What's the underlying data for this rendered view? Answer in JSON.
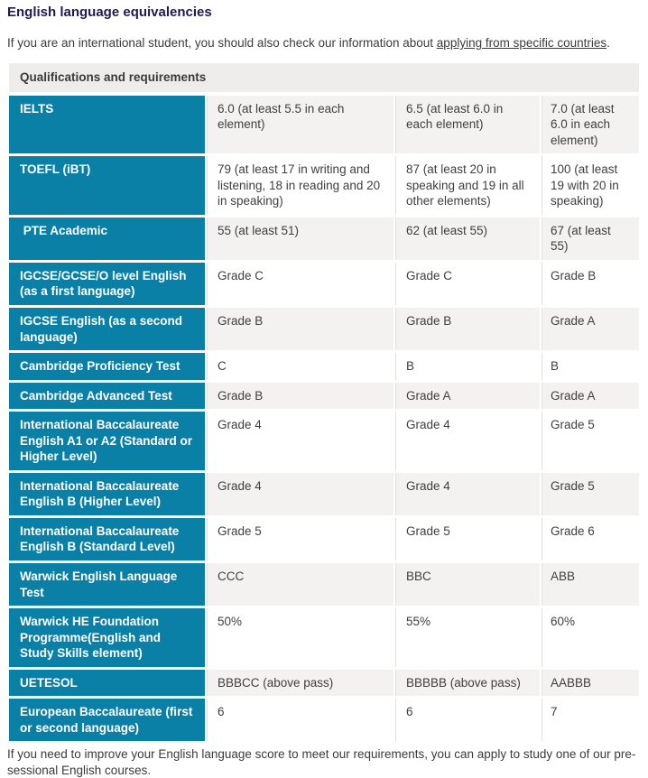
{
  "page": {
    "title": "English language equivalencies",
    "intro_before": "If you are an international student, you should also check our information about ",
    "intro_link": "applying from specific countries",
    "intro_after": ".",
    "bottom_note": "If you need to improve your English language score to meet our requirements, you can apply to study one of our pre-sessional English courses."
  },
  "table": {
    "header": "Qualifications and requirements",
    "rows": [
      {
        "label": "IELTS",
        "values": [
          "6.0 (at least 5.5 in each element)",
          "6.5 (at least 6.0 in each element)",
          "7.0 (at least 6.0 in each element)"
        ]
      },
      {
        "label": "TOEFL (iBT)",
        "values": [
          "79 (at least 17 in writing and listening, 18 in reading and 20 in speaking)",
          "87 (at least 20 in speaking and 19 in all other elements)",
          "100 (at least 19 with 20 in speaking)"
        ]
      },
      {
        "label": " PTE Academic",
        "values": [
          "55 (at least 51)",
          "62 (at least 55)",
          "67 (at least 55)"
        ]
      },
      {
        "label": "IGCSE/GCSE/O level English (as a first language)",
        "values": [
          "Grade C",
          "Grade C",
          "Grade B"
        ]
      },
      {
        "label": "IGCSE English (as a second language)",
        "values": [
          "Grade B",
          "Grade B",
          "Grade A"
        ]
      },
      {
        "label": "Cambridge Proficiency Test",
        "values": [
          "C",
          "B",
          "B"
        ]
      },
      {
        "label": "Cambridge Advanced Test",
        "values": [
          "Grade B",
          "Grade A",
          "Grade A"
        ]
      },
      {
        "label": "International Baccalaureate English A1 or A2 (Standard or Higher Level)",
        "values": [
          "Grade 4",
          "Grade 4",
          "Grade 5"
        ]
      },
      {
        "label": "International Baccalaureate English B (Higher Level)",
        "values": [
          "Grade 4",
          "Grade 4",
          "Grade 5"
        ]
      },
      {
        "label": "International Baccalaureate English B (Standard Level)",
        "values": [
          "Grade 5",
          "Grade 5",
          "Grade 6"
        ]
      },
      {
        "label": "Warwick English Language Test",
        "values": [
          "CCC",
          "BBC",
          "ABB"
        ]
      },
      {
        "label": "Warwick HE Foundation Programme(English and Study Skills element)",
        "values": [
          "50%",
          "55%",
          "60%"
        ]
      },
      {
        "label": "UETESOL",
        "values": [
          "BBBCC (above pass)",
          "BBBBB (above pass)",
          "AABBB"
        ]
      },
      {
        "label": "European Baccalaureate (first or second language)",
        "values": [
          "6",
          "6",
          "7"
        ]
      }
    ]
  },
  "colors": {
    "accent-teal": "#0a80a7",
    "heading-navy": "#1f1a53",
    "text": "#3b3b3b",
    "header-bar-bg": "#eeedeb",
    "row-alt-bg": "#f3f2f0",
    "separator": "#e0e0e0"
  }
}
